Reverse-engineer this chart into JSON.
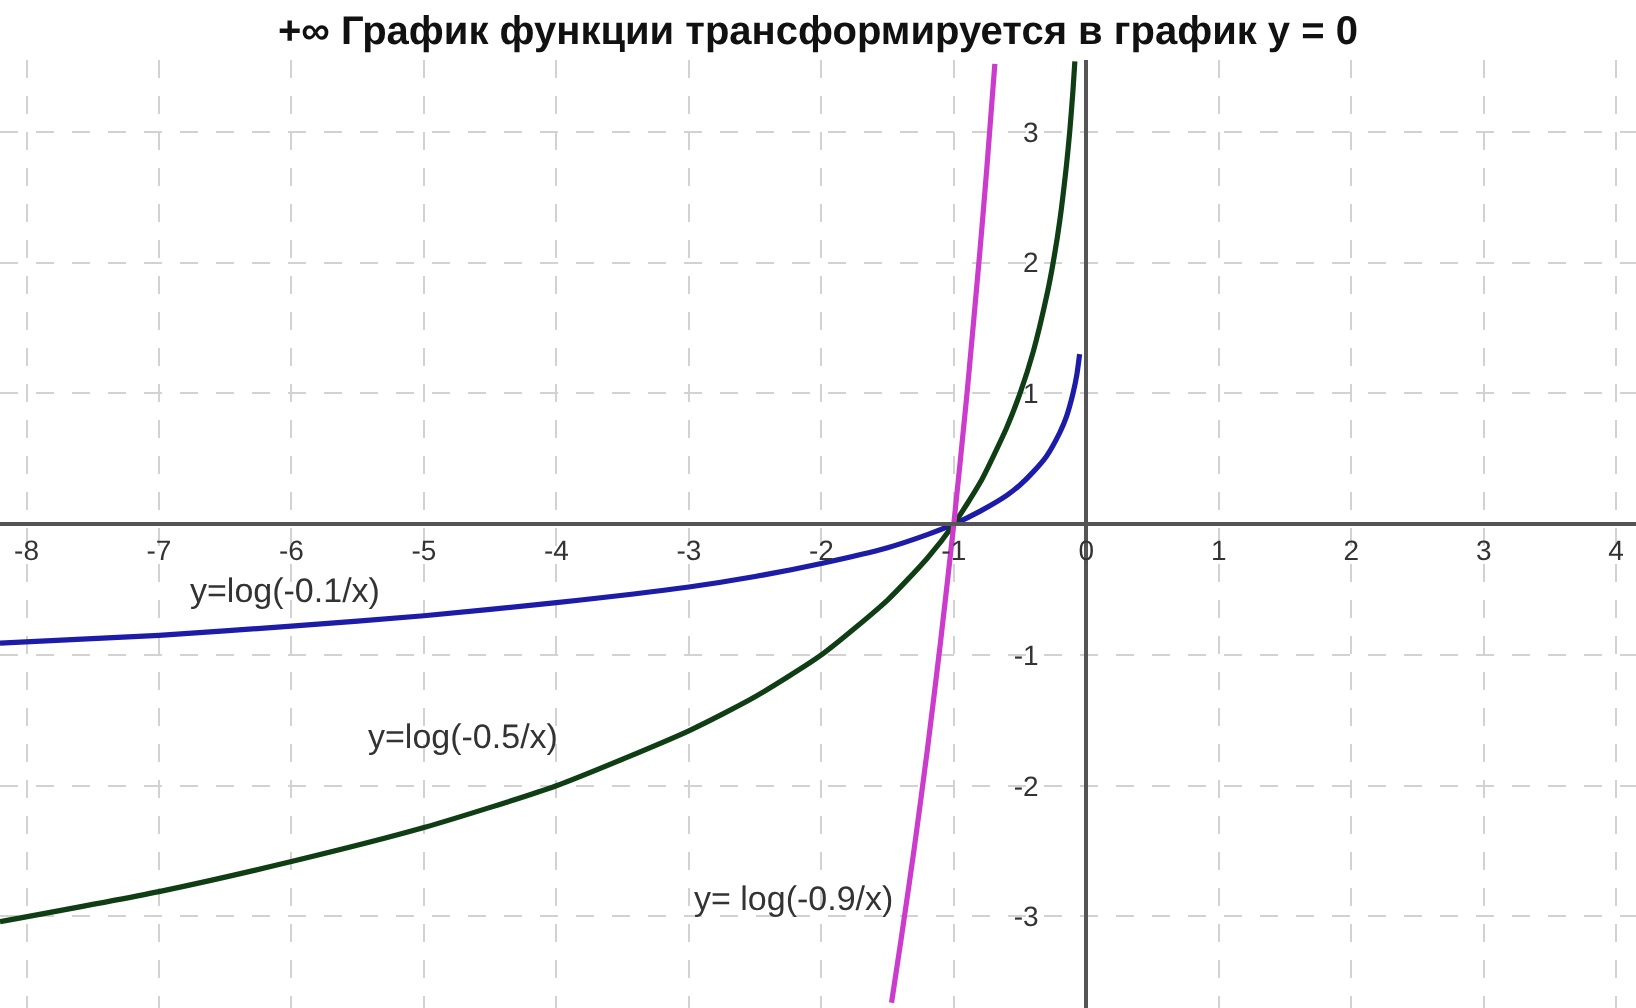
{
  "chart_data": {
    "type": "line",
    "title": "+∞ График функции трансформируется в график y = 0",
    "xlim": [
      -8.2,
      4.15
    ],
    "ylim": [
      -3.7,
      3.55
    ],
    "xticks": [
      -8,
      -7,
      -6,
      -5,
      -4,
      -3,
      -2,
      -1,
      0,
      1,
      2,
      3,
      4
    ],
    "yticks": [
      -3,
      -2,
      -1,
      1,
      2,
      3
    ],
    "grid": true,
    "marker": "none",
    "line_style": "solid",
    "series": [
      {
        "name": "y=log(-0.1/x)",
        "color": "#1c1ca8",
        "x": [
          -8.2,
          -7,
          -6,
          -5,
          -4,
          -3,
          -2.5,
          -2,
          -1.5,
          -1.2,
          -1,
          -0.8,
          -0.6,
          -0.5,
          -0.4,
          -0.3,
          -0.2,
          -0.15,
          -0.1,
          -0.07,
          -0.05
        ],
        "values": [
          -0.91,
          -0.85,
          -0.78,
          -0.7,
          -0.6,
          -0.48,
          -0.4,
          -0.3,
          -0.18,
          -0.08,
          0,
          0.1,
          0.22,
          0.3,
          0.4,
          0.52,
          0.7,
          0.82,
          1.0,
          1.15,
          1.3
        ]
      },
      {
        "name": "y=log(-0.5/x)",
        "color": "#0f3d14",
        "x": [
          -8.2,
          -7,
          -6,
          -5,
          -4,
          -3,
          -2.5,
          -2,
          -1.5,
          -1.2,
          -1,
          -0.8,
          -0.6,
          -0.5,
          -0.4,
          -0.3,
          -0.25,
          -0.2,
          -0.15,
          -0.125,
          -0.1,
          -0.086
        ],
        "values": [
          -3.04,
          -2.81,
          -2.58,
          -2.32,
          -2.0,
          -1.58,
          -1.32,
          -1.0,
          -0.58,
          -0.26,
          0,
          0.32,
          0.74,
          1.0,
          1.32,
          1.74,
          2.0,
          2.32,
          2.74,
          3.0,
          3.32,
          3.54
        ]
      },
      {
        "name": "y= log(-0.9/x)",
        "color": "#cc3ccc",
        "x": [
          -0.69,
          -0.75,
          -0.8,
          -0.9,
          -1,
          -1.1,
          -1.2,
          -1.3,
          -1.4,
          -1.47
        ],
        "values": [
          3.52,
          2.73,
          2.12,
          1.0,
          0,
          -0.9,
          -1.73,
          -2.49,
          -3.19,
          -3.66
        ]
      }
    ]
  }
}
